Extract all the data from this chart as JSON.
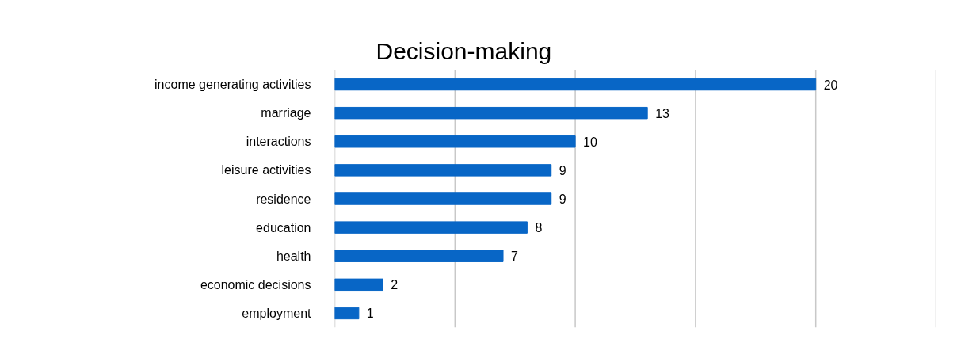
{
  "chart_data": {
    "type": "bar",
    "orientation": "horizontal",
    "title": "Decision-making",
    "categories": [
      "income generating activities",
      "marriage",
      "interactions",
      "leisure activities",
      "residence",
      "education",
      "health",
      "economic decisions",
      "employment"
    ],
    "values": [
      20,
      13,
      10,
      9,
      9,
      8,
      7,
      2,
      1
    ],
    "color": "#0866c6",
    "xlim": [
      0,
      25
    ],
    "xticks": [
      {
        "value": 0,
        "label": null
      },
      {
        "value": 5,
        "label": null
      },
      {
        "value": 10,
        "label": null
      },
      {
        "value": 15,
        "label": null
      },
      {
        "value": 20,
        "label": null
      },
      {
        "value": 25,
        "label": null
      }
    ],
    "grid": "x",
    "data_labels": true,
    "tick_labels": "y"
  }
}
